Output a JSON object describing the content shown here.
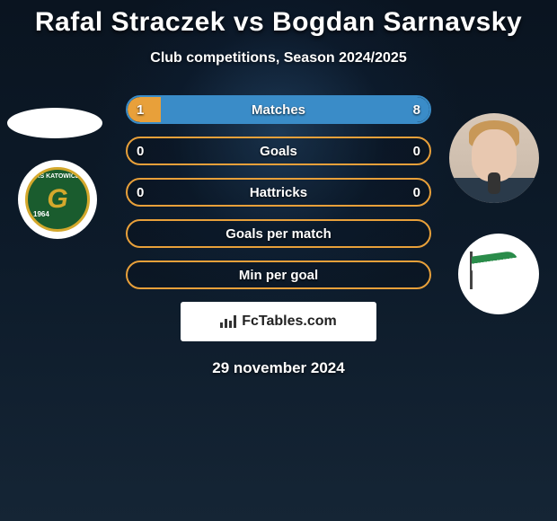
{
  "title": "Rafal Straczek vs Bogdan Sarnavsky",
  "subtitle": "Club competitions, Season 2024/2025",
  "date": "29 november 2024",
  "brand": "FcTables.com",
  "colors": {
    "left_accent": "#e8a03a",
    "right_accent": "#3a8cc8",
    "border_default": "#e8a03a",
    "text": "#ffffff"
  },
  "stats": [
    {
      "label": "Matches",
      "left_value": "1",
      "right_value": "8",
      "left_pct": 11,
      "right_pct": 89,
      "left_fill": "#e8a03a",
      "right_fill": "#3a8cc8",
      "border": "#3a8cc8"
    },
    {
      "label": "Goals",
      "left_value": "0",
      "right_value": "0",
      "left_pct": 0,
      "right_pct": 0,
      "left_fill": "#e8a03a",
      "right_fill": "#3a8cc8",
      "border": "#e8a03a"
    },
    {
      "label": "Hattricks",
      "left_value": "0",
      "right_value": "0",
      "left_pct": 0,
      "right_pct": 0,
      "left_fill": "#e8a03a",
      "right_fill": "#3a8cc8",
      "border": "#e8a03a"
    },
    {
      "label": "Goals per match",
      "left_value": "",
      "right_value": "",
      "left_pct": 0,
      "right_pct": 0,
      "left_fill": "#e8a03a",
      "right_fill": "#3a8cc8",
      "border": "#e8a03a"
    },
    {
      "label": "Min per goal",
      "left_value": "",
      "right_value": "",
      "left_pct": 0,
      "right_pct": 0,
      "left_fill": "#e8a03a",
      "right_fill": "#3a8cc8",
      "border": "#e8a03a"
    }
  ],
  "left_club": {
    "name": "KS KATOWICE",
    "year": "1964"
  },
  "right_player": "Bogdan Sarnavsky"
}
